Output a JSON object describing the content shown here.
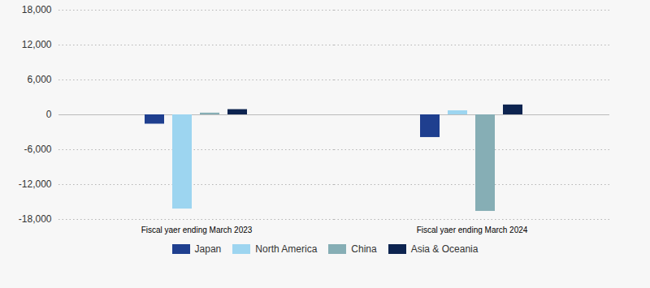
{
  "chart_data": {
    "type": "bar",
    "categories": [
      "Fiscal yaer ending March 2023",
      "Fiscal yaer ending March 2024"
    ],
    "series": [
      {
        "name": "Japan",
        "color": "#1f3f8f",
        "values": [
          -1600,
          -3900
        ]
      },
      {
        "name": "North America",
        "color": "#9dd5f0",
        "values": [
          -16200,
          700
        ]
      },
      {
        "name": "China",
        "color": "#86aeb5",
        "values": [
          300,
          -16600
        ]
      },
      {
        "name": "Asia & Oceania",
        "color": "#0d2450",
        "values": [
          900,
          1700
        ]
      }
    ],
    "ylim": [
      -18000,
      18000
    ],
    "yticks": [
      {
        "value": -18000,
        "label": "-18,000"
      },
      {
        "value": -12000,
        "label": "-12,000"
      },
      {
        "value": -6000,
        "label": "-6,000"
      },
      0,
      {
        "value": 6000,
        "label": "6,000"
      },
      {
        "value": 12000,
        "label": "12,000"
      },
      {
        "value": 18000,
        "label": "18,000"
      }
    ],
    "grid": true,
    "legend": "bottom"
  }
}
